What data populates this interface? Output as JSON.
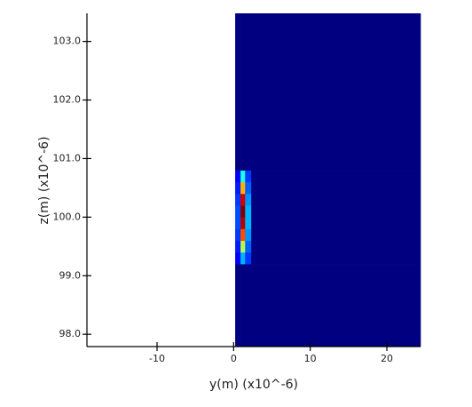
{
  "chart_data": {
    "type": "heatmap",
    "colormap": "jet",
    "xlabel": "y(m) (x10^-6)",
    "ylabel": "z(m) (x10^-6)",
    "xlim": [
      -19.15,
      24.4
    ],
    "ylim": [
      97.79,
      103.48
    ],
    "xticks": [
      -10,
      0,
      10,
      20
    ],
    "yticks": [
      {
        "value": 98,
        "label": "98.0"
      },
      {
        "value": 99,
        "label": "99.0"
      },
      {
        "value": 100,
        "label": "100.0"
      },
      {
        "value": 101,
        "label": "101.0"
      },
      {
        "value": 102,
        "label": "102.0"
      },
      {
        "value": 103,
        "label": "103.0"
      }
    ],
    "x_edges": [
      0.2,
      0.9,
      1.5,
      2.3,
      24.4
    ],
    "y_edges": [
      97.79,
      99.2,
      99.4,
      99.6,
      99.8,
      100.0,
      100.2,
      100.4,
      100.6,
      100.8,
      103.48
    ],
    "values": [
      [
        0,
        0,
        0,
        0
      ],
      [
        0.12,
        0.3,
        0.18,
        0
      ],
      [
        0.15,
        0.55,
        0.22,
        0
      ],
      [
        0.18,
        0.8,
        0.27,
        0
      ],
      [
        0.2,
        0.95,
        0.3,
        0
      ],
      [
        0.2,
        1.0,
        0.3,
        0
      ],
      [
        0.18,
        0.92,
        0.27,
        0
      ],
      [
        0.15,
        0.7,
        0.22,
        0
      ],
      [
        0.12,
        0.4,
        0.18,
        0
      ],
      [
        0,
        0,
        0,
        0
      ]
    ]
  }
}
